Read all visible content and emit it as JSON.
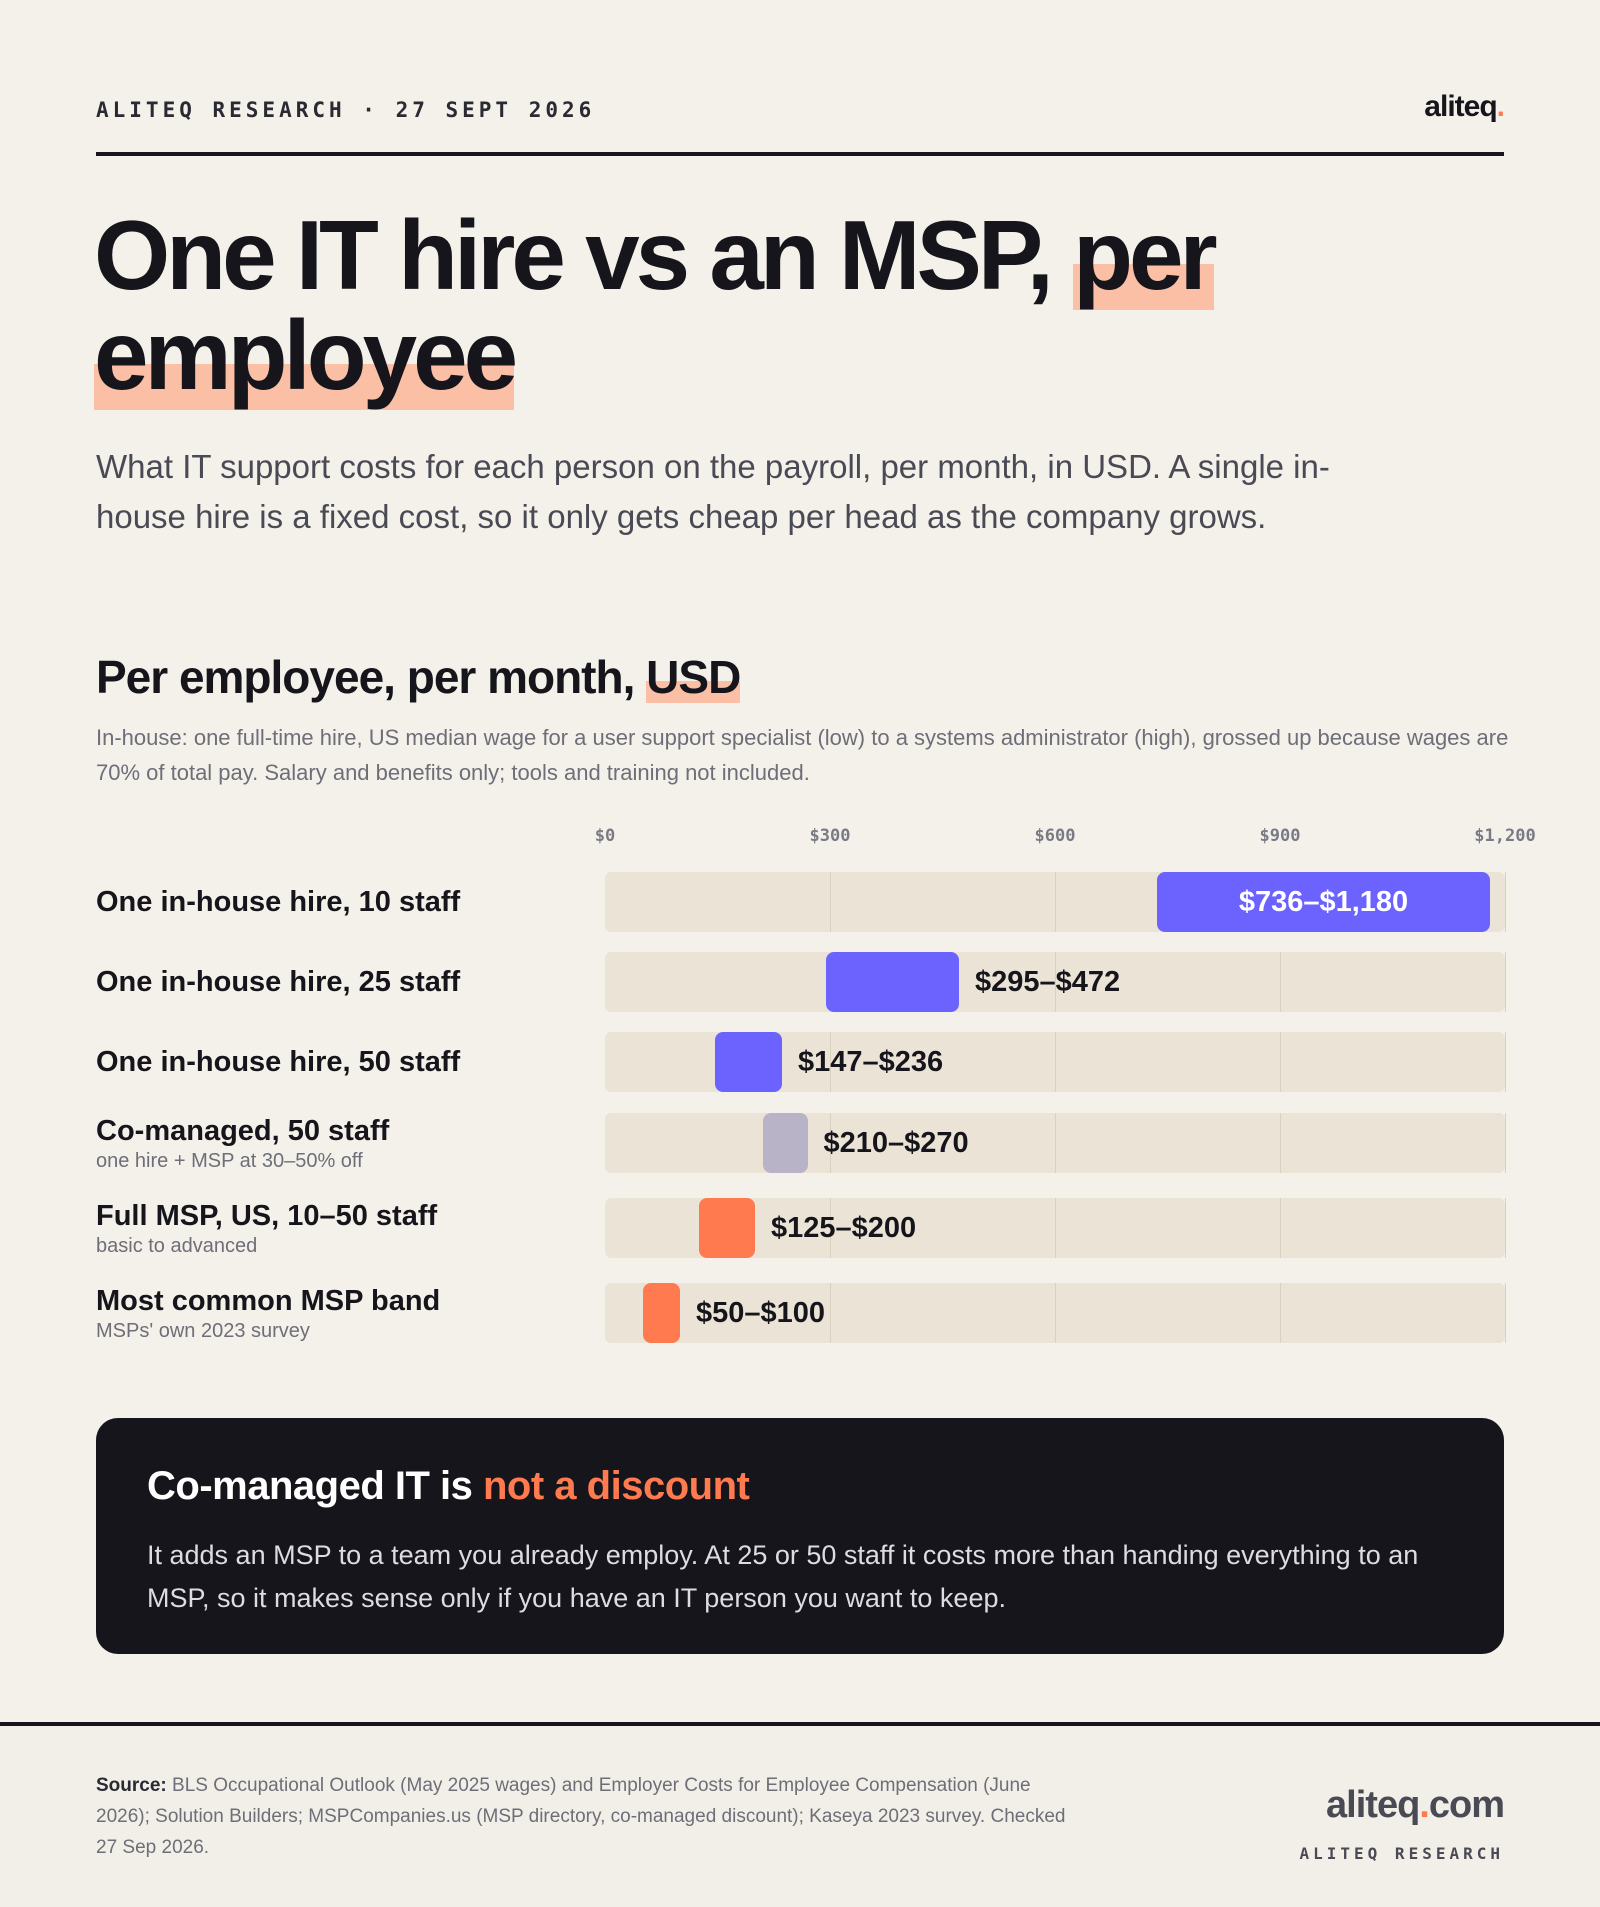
{
  "header": {
    "kicker": "ALITEQ RESEARCH · 27 SEPT 2026",
    "logo_text": "aliteq",
    "logo_dot": "."
  },
  "title": {
    "part1": "One IT hire vs an MSP, ",
    "highlight1": "per",
    "highlight2": "employee"
  },
  "intro": "What IT support costs for each person on the payroll, per month, in USD. A single in-house hire is a fixed cost, so it only gets cheap per head as the company grows.",
  "section": {
    "title_pre": "Per employee, per month, ",
    "title_highlight": "USD",
    "note": "In-house: one full-time hire, US median wage for a user support specialist (low) to a systems administrator (high), grossed up because wages are 70% of total pay. Salary and benefits only; tools and training not included."
  },
  "chart_data": {
    "type": "bar",
    "orientation": "horizontal-range",
    "xlim": [
      0,
      1200
    ],
    "ticks": [
      0,
      300,
      600,
      900,
      1200
    ],
    "tick_labels": [
      "$0",
      "$300",
      "$600",
      "$900",
      "$1,200"
    ],
    "grid": true,
    "rows": [
      {
        "label": "One in-house hire, 10 staff",
        "sub": "",
        "low": 736,
        "high": 1180,
        "value_label": "$736–$1,180",
        "color": "#6c63ff",
        "label_inside": true
      },
      {
        "label": "One in-house hire, 25 staff",
        "sub": "",
        "low": 295,
        "high": 472,
        "value_label": "$295–$472",
        "color": "#6c63ff",
        "label_inside": false
      },
      {
        "label": "One in-house hire, 50 staff",
        "sub": "",
        "low": 147,
        "high": 236,
        "value_label": "$147–$236",
        "color": "#6c63ff",
        "label_inside": false
      },
      {
        "label": "Co-managed, 50 staff",
        "sub": "one hire + MSP at 30–50% off",
        "low": 210,
        "high": 270,
        "value_label": "$210–$270",
        "color": "#b9b3c8",
        "label_inside": false
      },
      {
        "label": "Full MSP, US, 10–50 staff",
        "sub": "basic to advanced",
        "low": 125,
        "high": 200,
        "value_label": "$125–$200",
        "color": "#ff7a4e",
        "label_inside": false
      },
      {
        "label": "Most common MSP band",
        "sub": "MSPs' own 2023 survey",
        "low": 50,
        "high": 100,
        "value_label": "$50–$100",
        "color": "#ff7a4e",
        "label_inside": false
      }
    ]
  },
  "callout": {
    "title_pre": "Co-managed IT is ",
    "title_accent": "not a discount",
    "body": "It adds an MSP to a team you already employ. At 25 or 50 staff it costs more than handing everything to an MSP, so it makes sense only if you have an IT person you want to keep."
  },
  "footer": {
    "source_label": "Source:",
    "source_text": " BLS Occupational Outlook (May 2025 wages) and Employer Costs for Employee Compensation (June 2026); Solution Builders; MSPCompanies.us (MSP directory, co-managed discount); Kaseya 2023 survey. Checked 27 Sep 2026.",
    "logo_pre": "aliteq",
    "logo_dot": ".",
    "logo_post": "com",
    "sub": "ALITEQ RESEARCH"
  }
}
